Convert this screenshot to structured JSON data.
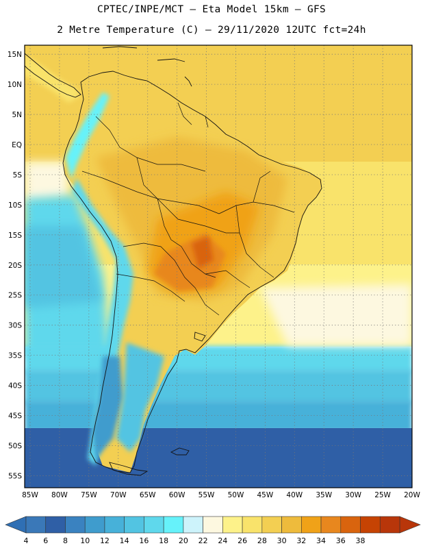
{
  "header": {
    "line1": "CPTEC/INPE/MCT –  Eta Model 15km – GFS",
    "line2": "2 Metre Temperature (C) – 29/11/2020 12UTC fct=24h"
  },
  "map": {
    "lon_labels": [
      "85W",
      "80W",
      "75W",
      "70W",
      "65W",
      "60W",
      "55W",
      "50W",
      "45W",
      "40W",
      "35W",
      "30W",
      "25W",
      "20W"
    ],
    "lat_labels": [
      "15N",
      "10N",
      "5N",
      "EQ",
      "5S",
      "10S",
      "15S",
      "20S",
      "25S",
      "30S",
      "35S",
      "40S",
      "45S",
      "50S",
      "55S"
    ],
    "lon_range": [
      -85,
      -20
    ],
    "lat_range": [
      -57,
      16.5
    ]
  },
  "colorbar": {
    "ticks": [
      "4",
      "6",
      "8",
      "10",
      "12",
      "14",
      "16",
      "18",
      "20",
      "22",
      "24",
      "26",
      "28",
      "30",
      "32",
      "34",
      "36",
      "38"
    ],
    "colors": [
      "#3a78b8",
      "#2f5fa6",
      "#3a82c0",
      "#3f9ccd",
      "#47b1d9",
      "#52c4e2",
      "#5fd8ec",
      "#66f2fa",
      "#cdf3fb",
      "#fdf8e0",
      "#fdf28a",
      "#f9e36b",
      "#f3cf52",
      "#eebb3c",
      "#f0a218",
      "#e8871e",
      "#d9640e",
      "#c64303",
      "#b8360a"
    ],
    "under_color": "#2f6fb4",
    "over_color": "#b8360a"
  }
}
